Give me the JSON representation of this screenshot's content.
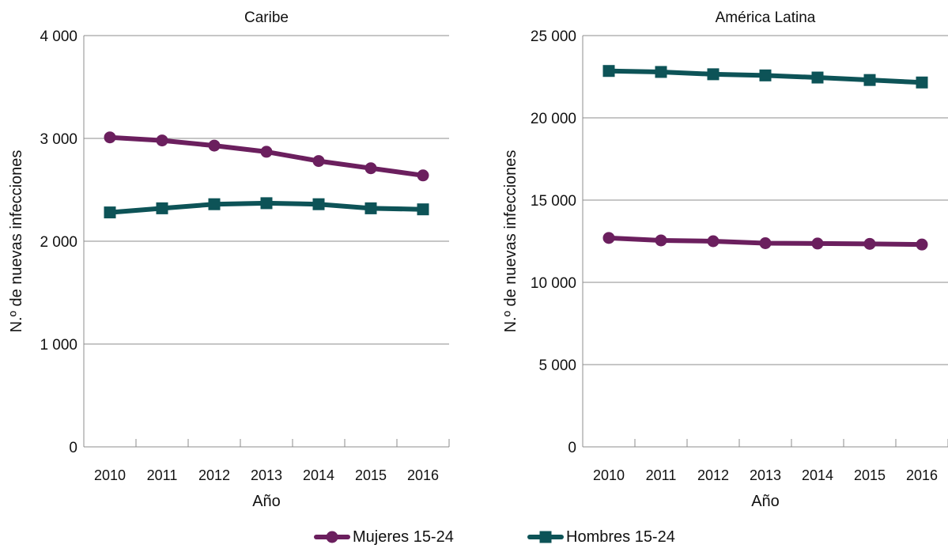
{
  "chart_data": [
    {
      "type": "line",
      "title": "Caribe",
      "xlabel": "Año",
      "ylabel": "N.º de nuevas infecciones",
      "x": [
        "2010",
        "2011",
        "2012",
        "2013",
        "2014",
        "2015",
        "2016"
      ],
      "ylim": [
        0,
        4000
      ],
      "yticks": [
        0,
        1000,
        2000,
        3000,
        4000
      ],
      "ytick_labels": [
        "0",
        "1 000",
        "2 000",
        "3 000",
        "4 000"
      ],
      "grid": true,
      "series": [
        {
          "name": "Mujeres 15-24",
          "marker": "circle",
          "color": "#6b1f5e",
          "values": [
            3010,
            2980,
            2930,
            2870,
            2780,
            2710,
            2640
          ]
        },
        {
          "name": "Hombres 15-24",
          "marker": "square",
          "color": "#0d5357",
          "values": [
            2280,
            2320,
            2360,
            2370,
            2360,
            2320,
            2310
          ]
        }
      ]
    },
    {
      "type": "line",
      "title": "América Latina",
      "xlabel": "Año",
      "ylabel": "N.º de nuevas infecciones",
      "x": [
        "2010",
        "2011",
        "2012",
        "2013",
        "2014",
        "2015",
        "2016"
      ],
      "ylim": [
        0,
        25000
      ],
      "yticks": [
        0,
        5000,
        10000,
        15000,
        20000,
        25000
      ],
      "ytick_labels": [
        "0",
        "5 000",
        "10 000",
        "15 000",
        "20 000",
        "25 000"
      ],
      "grid": true,
      "series": [
        {
          "name": "Mujeres 15-24",
          "marker": "circle",
          "color": "#6b1f5e",
          "values": [
            12700,
            12550,
            12500,
            12380,
            12360,
            12340,
            12300
          ]
        },
        {
          "name": "Hombres 15-24",
          "marker": "square",
          "color": "#0d5357",
          "values": [
            22850,
            22790,
            22650,
            22580,
            22450,
            22300,
            22150
          ]
        }
      ]
    }
  ],
  "legend": {
    "placement": "bottom-center",
    "items": [
      {
        "label": "Mujeres 15-24",
        "marker": "circle",
        "color": "#6b1f5e"
      },
      {
        "label": "Hombres 15-24",
        "marker": "square",
        "color": "#0d5357"
      }
    ]
  }
}
